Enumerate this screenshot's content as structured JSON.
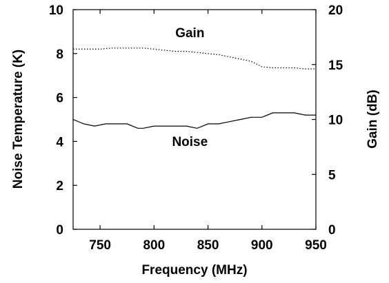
{
  "chart_data": {
    "type": "line",
    "xlabel": "Frequency (MHz)",
    "ylabel_left": "Noise Temperature (K)",
    "ylabel_right": "Gain (dB)",
    "xlim": [
      725,
      950
    ],
    "ylim_left": [
      0,
      10
    ],
    "ylim_right": [
      0,
      20
    ],
    "x_ticks": [
      750,
      800,
      850,
      900,
      950
    ],
    "y_ticks_left": [
      0,
      2,
      4,
      6,
      8,
      10
    ],
    "y_ticks_right": [
      0,
      5,
      10,
      15,
      20
    ],
    "grid": false,
    "series": [
      {
        "name": "Gain",
        "axis": "right",
        "line_style": "dotted",
        "label_at": {
          "x": 800,
          "y": 17.5
        },
        "x": [
          725,
          740,
          750,
          760,
          770,
          780,
          790,
          800,
          810,
          820,
          830,
          840,
          850,
          860,
          870,
          880,
          890,
          900,
          910,
          920,
          930,
          940,
          950
        ],
        "values": [
          16.4,
          16.4,
          16.4,
          16.5,
          16.5,
          16.5,
          16.5,
          16.4,
          16.3,
          16.2,
          16.2,
          16.1,
          16.0,
          15.9,
          15.7,
          15.5,
          15.3,
          14.8,
          14.7,
          14.7,
          14.7,
          14.6,
          14.6
        ]
      },
      {
        "name": "Noise",
        "axis": "left",
        "line_style": "solid",
        "label_at": {
          "x": 800,
          "y": 3.8
        },
        "x": [
          725,
          735,
          745,
          755,
          765,
          775,
          785,
          790,
          800,
          810,
          820,
          830,
          840,
          850,
          860,
          870,
          880,
          890,
          900,
          910,
          920,
          930,
          940,
          950
        ],
        "values": [
          5.0,
          4.8,
          4.7,
          4.8,
          4.8,
          4.8,
          4.6,
          4.6,
          4.7,
          4.7,
          4.7,
          4.7,
          4.6,
          4.8,
          4.8,
          4.9,
          5.0,
          5.1,
          5.1,
          5.3,
          5.3,
          5.3,
          5.2,
          5.2
        ]
      }
    ]
  }
}
